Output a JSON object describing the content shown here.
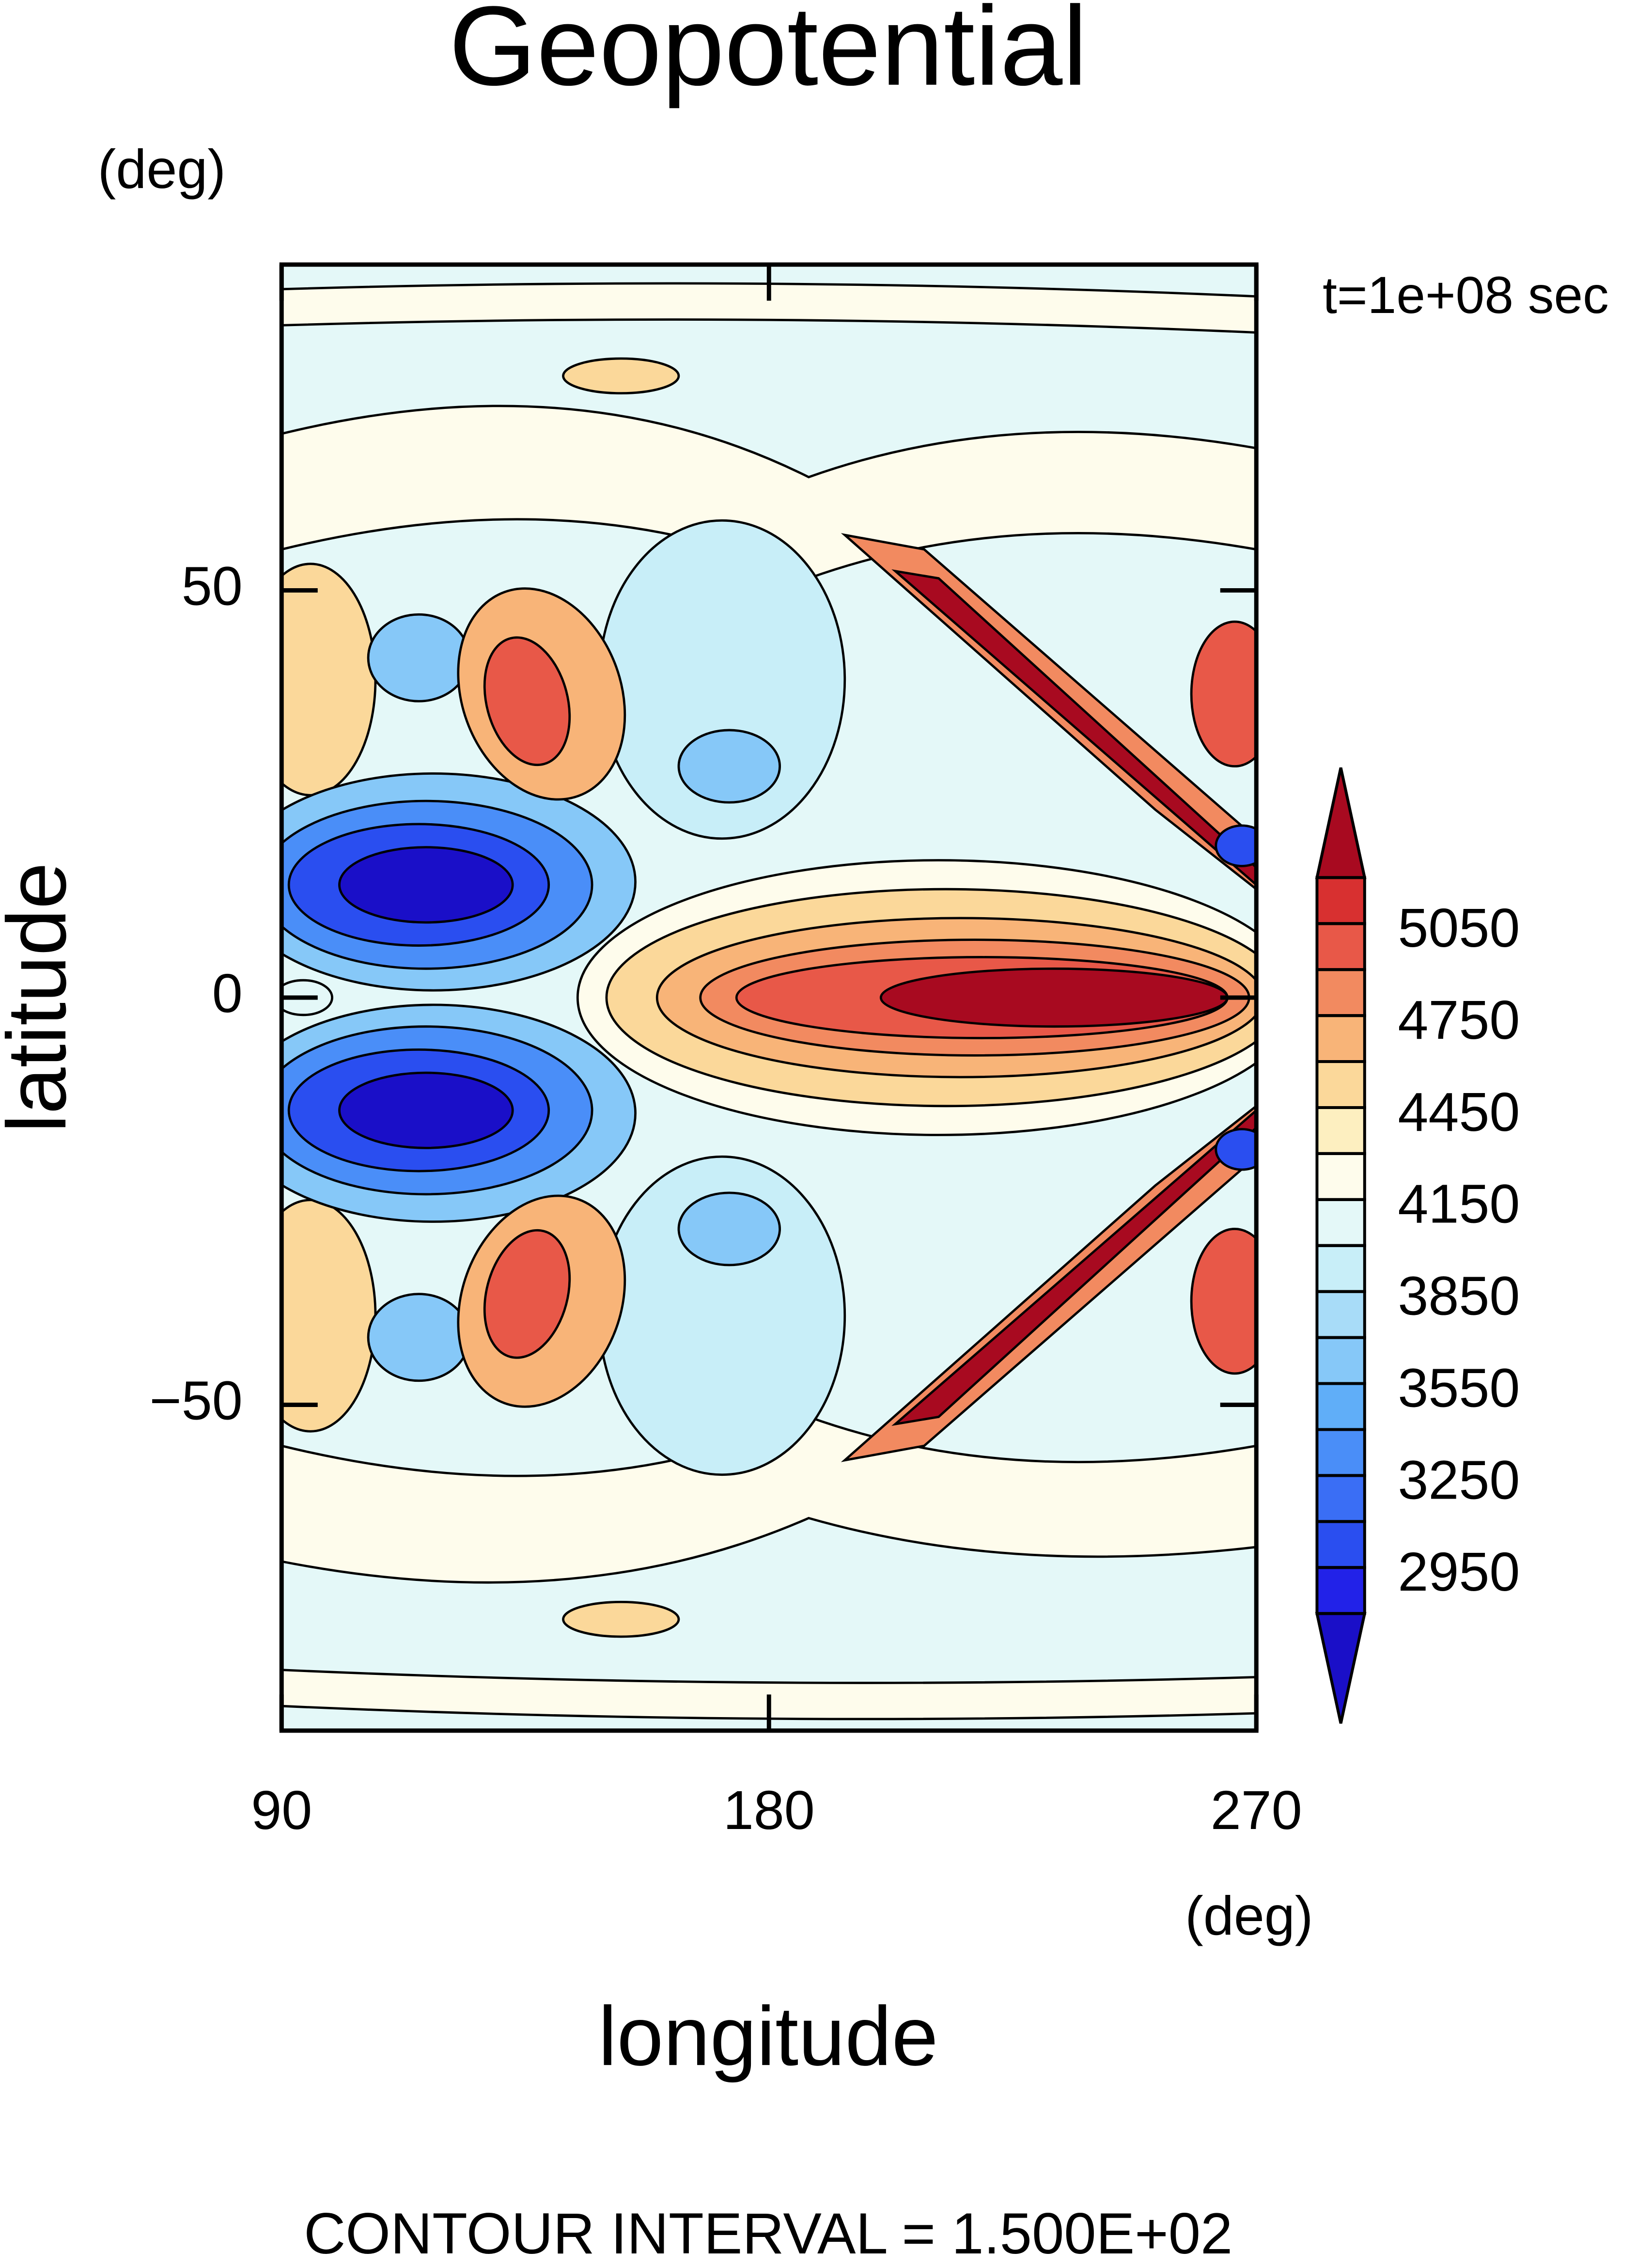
{
  "chart_data": {
    "type": "contour",
    "title": "Geopotential",
    "xlabel": "longitude",
    "ylabel": "latitude",
    "xunit": "(deg)",
    "yunit": "(deg)",
    "annotation": "t=1e+08 sec",
    "footer": "CONTOUR INTERVAL = 1.500E+02",
    "xlim": [
      90,
      270
    ],
    "ylim": [
      -90,
      90
    ],
    "xticks": [
      90,
      180,
      270
    ],
    "yticks": [
      {
        "value": -50,
        "label": "−50"
      },
      0,
      50
    ],
    "colorbar": {
      "levels": [
        2800,
        2950,
        3100,
        3250,
        3400,
        3550,
        3700,
        3850,
        4000,
        4150,
        4300,
        4450,
        4600,
        4750,
        4900,
        5050,
        5200
      ],
      "ticks": [
        2950,
        3250,
        3550,
        3850,
        4150,
        4450,
        4750,
        5050
      ],
      "colors": [
        "#1a0fc8",
        "#2222e8",
        "#2a4ef0",
        "#3a6ef5",
        "#4a8ef8",
        "#60aef8",
        "#86c8f8",
        "#a8dcf8",
        "#c8eef8",
        "#e4f8f8",
        "#fefcec",
        "#fdefc0",
        "#fbd89a",
        "#f8b478",
        "#f28a60",
        "#e85848",
        "#d83030",
        "#a80a20"
      ]
    }
  }
}
